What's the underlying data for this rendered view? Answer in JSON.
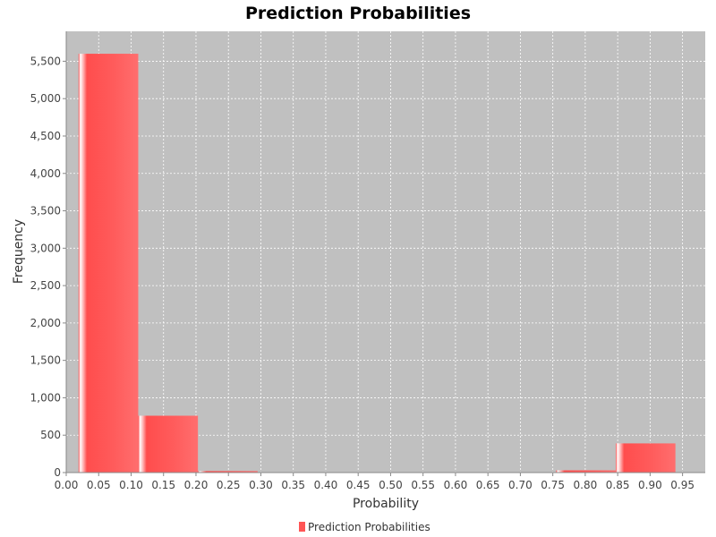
{
  "chart_data": {
    "type": "bar",
    "title": "Prediction Probabilities",
    "xlabel": "Probability",
    "ylabel": "Frequency",
    "xlim": [
      0.0,
      0.985
    ],
    "ylim": [
      0,
      5900
    ],
    "x_ticks": [
      0.0,
      0.05,
      0.1,
      0.15,
      0.2,
      0.25,
      0.3,
      0.35,
      0.4,
      0.45,
      0.5,
      0.55,
      0.6,
      0.65,
      0.7,
      0.75,
      0.8,
      0.85,
      0.9,
      0.95
    ],
    "x_tick_labels": [
      "0.00",
      "0.05",
      "0.10",
      "0.15",
      "0.20",
      "0.25",
      "0.30",
      "0.35",
      "0.40",
      "0.45",
      "0.50",
      "0.55",
      "0.60",
      "0.65",
      "0.70",
      "0.75",
      "0.80",
      "0.85",
      "0.90",
      "0.95"
    ],
    "y_ticks": [
      0,
      500,
      1000,
      1500,
      2000,
      2500,
      3000,
      3500,
      4000,
      4500,
      5000,
      5500
    ],
    "y_tick_labels": [
      "0",
      "500",
      "1,000",
      "1,500",
      "2,000",
      "2,500",
      "3,000",
      "3,500",
      "4,000",
      "4,500",
      "5,000",
      "5,500"
    ],
    "grid": true,
    "legend_position": "bottom-center",
    "series": [
      {
        "name": "Prediction Probabilities",
        "color": "#ff5555",
        "bins": [
          {
            "start": 0.019,
            "end": 0.111,
            "value": 5600
          },
          {
            "start": 0.111,
            "end": 0.203,
            "value": 760
          },
          {
            "start": 0.203,
            "end": 0.295,
            "value": 20
          },
          {
            "start": 0.755,
            "end": 0.847,
            "value": 30
          },
          {
            "start": 0.847,
            "end": 0.939,
            "value": 390
          }
        ]
      }
    ]
  }
}
